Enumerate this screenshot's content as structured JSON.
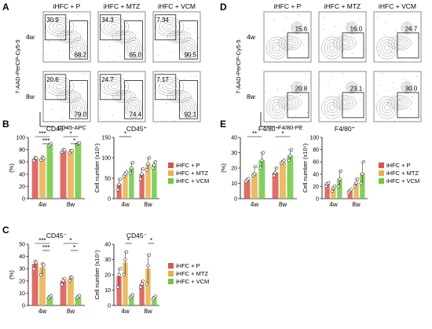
{
  "panels": {
    "A": {
      "letter": "A",
      "conditions": [
        "iHFC + P",
        "iHFC + MTZ",
        "iHFC + VCM"
      ],
      "rows": [
        "4w",
        "8w"
      ],
      "y_axis": "7-AAD-PerCP-Cy5-5",
      "x_axis": "CD45-APC",
      "gate_values": [
        [
          {
            "top": "30.9",
            "bottom": "68.2"
          },
          {
            "top": "34.3",
            "bottom": "65.0"
          },
          {
            "top": "7.34",
            "bottom": "90.5"
          }
        ],
        [
          {
            "top": "20.6",
            "bottom": "79.0"
          },
          {
            "top": "24.7",
            "bottom": "74.4"
          },
          {
            "top": "7.17",
            "bottom": "92.1"
          }
        ]
      ]
    },
    "D": {
      "letter": "D",
      "conditions": [
        "iHFC + P",
        "iHFC + MTZ",
        "iHFC + VCM"
      ],
      "rows": [
        "4w",
        "8w"
      ],
      "y_axis": "7-AAD-PerCP-Cy5-5",
      "x_axis": "F4/80-PE",
      "gate_values": [
        [
          "15.6",
          "16.0",
          "24.7"
        ],
        [
          "20.8",
          "23.1",
          "30.0"
        ]
      ]
    },
    "B": {
      "letter": "B"
    },
    "C": {
      "letter": "C"
    },
    "E": {
      "letter": "E"
    }
  },
  "legend": {
    "labels": [
      "iHFC + P",
      "iHFC + MTZ",
      "iHFC + VCM"
    ],
    "colors": [
      "#d9534f",
      "#e8b04a",
      "#6ec842"
    ]
  },
  "chart_data": [
    {
      "id": "B-percent",
      "type": "bar",
      "title": "CD45⁺",
      "ylabel": "(%)",
      "categories": [
        "4w",
        "8w"
      ],
      "ylim": [
        0,
        100
      ],
      "yticks": [
        0,
        20,
        40,
        60,
        80,
        100
      ],
      "series": [
        {
          "name": "iHFC + P",
          "values": [
            65,
            78
          ],
          "points": [
            [
              62,
              67,
              66
            ],
            [
              76,
              80,
              79
            ]
          ]
        },
        {
          "name": "iHFC + MTZ",
          "values": [
            66,
            77
          ],
          "points": [
            [
              63,
              68,
              66
            ],
            [
              75,
              78,
              78
            ]
          ]
        },
        {
          "name": "iHFC + VCM",
          "values": [
            88,
            90
          ],
          "points": [
            [
              86,
              88,
              90
            ],
            [
              89,
              90,
              91
            ]
          ]
        }
      ],
      "significance": [
        {
          "label": "***",
          "from": [
            "4w",
            0
          ],
          "to": [
            "4w",
            2
          ]
        },
        {
          "label": "***",
          "from": [
            "4w",
            1
          ],
          "to": [
            "4w",
            2
          ]
        },
        {
          "label": "*",
          "from": [
            "8w",
            0
          ],
          "to": [
            "8w",
            2
          ]
        },
        {
          "label": "*",
          "from": [
            "8w",
            1
          ],
          "to": [
            "8w",
            2
          ]
        }
      ]
    },
    {
      "id": "B-count",
      "type": "bar",
      "title": "CD45⁺",
      "ylabel": "Cell number (x10⁵)",
      "categories": [
        "4w",
        "8w"
      ],
      "ylim": [
        0,
        150
      ],
      "yticks": [
        0,
        50,
        100,
        150
      ],
      "series": [
        {
          "name": "iHFC + P",
          "values": [
            35,
            60
          ],
          "points": [
            [
              22,
              35,
              48
            ],
            [
              48,
              60,
              73
            ]
          ]
        },
        {
          "name": "iHFC + MTZ",
          "values": [
            60,
            85
          ],
          "points": [
            [
              55,
              60,
              65
            ],
            [
              70,
              85,
              100
            ]
          ]
        },
        {
          "name": "iHFC + VCM",
          "values": [
            75,
            85
          ],
          "points": [
            [
              62,
              75,
              88
            ],
            [
              75,
              82,
              90
            ]
          ]
        }
      ],
      "significance": [
        {
          "label": "*",
          "from": [
            "4w",
            0
          ],
          "to": [
            "4w",
            2
          ]
        }
      ]
    },
    {
      "id": "C-percent",
      "type": "bar",
      "title": "CD45⁻",
      "ylabel": "(%)",
      "categories": [
        "4w",
        "8w"
      ],
      "ylim": [
        0,
        50
      ],
      "yticks": [
        0,
        10,
        20,
        30,
        40,
        50
      ],
      "series": [
        {
          "name": "iHFC + P",
          "values": [
            34,
            20
          ],
          "points": [
            [
              30,
              36,
              35
            ],
            [
              17,
              20,
              22
            ]
          ]
        },
        {
          "name": "iHFC + MTZ",
          "values": [
            31,
            22
          ],
          "points": [
            [
              25,
              34,
              33
            ],
            [
              20,
              23,
              23
            ]
          ]
        },
        {
          "name": "iHFC + VCM",
          "values": [
            7,
            7
          ],
          "points": [
            [
              6,
              7,
              8
            ],
            [
              6,
              7,
              8
            ]
          ]
        }
      ],
      "significance": [
        {
          "label": "***",
          "from": [
            "4w",
            0
          ],
          "to": [
            "4w",
            2
          ]
        },
        {
          "label": "***",
          "from": [
            "4w",
            1
          ],
          "to": [
            "4w",
            2
          ]
        },
        {
          "label": "*",
          "from": [
            "8w",
            0
          ],
          "to": [
            "8w",
            2
          ]
        },
        {
          "label": "*",
          "from": [
            "8w",
            1
          ],
          "to": [
            "8w",
            2
          ]
        }
      ]
    },
    {
      "id": "C-count",
      "type": "bar",
      "title": "CD45⁻",
      "ylabel": "Cell number (x10⁵)",
      "categories": [
        "4w",
        "8w"
      ],
      "ylim": [
        0,
        40
      ],
      "yticks": [
        0,
        10,
        20,
        30,
        40
      ],
      "series": [
        {
          "name": "iHFC + P",
          "values": [
            19,
            14
          ],
          "points": [
            [
              12,
              20,
              24
            ],
            [
              12,
              14,
              16
            ]
          ]
        },
        {
          "name": "iHFC + MTZ",
          "values": [
            28,
            24
          ],
          "points": [
            [
              20,
              30,
              35
            ],
            [
              14,
              26,
              33
            ]
          ]
        },
        {
          "name": "iHFC + VCM",
          "values": [
            6,
            5
          ],
          "points": [
            [
              5,
              6,
              7
            ],
            [
              4,
              5,
              6
            ]
          ]
        }
      ],
      "significance": [
        {
          "label": "*",
          "from": [
            "4w",
            1
          ],
          "to": [
            "4w",
            2
          ]
        },
        {
          "label": "*",
          "from": [
            "8w",
            1
          ],
          "to": [
            "8w",
            2
          ]
        }
      ]
    },
    {
      "id": "E-percent",
      "type": "bar",
      "title": "F4/80⁺",
      "ylabel": "(%)",
      "categories": [
        "4w",
        "8w"
      ],
      "ylim": [
        0,
        40
      ],
      "yticks": [
        0,
        10,
        20,
        30,
        40
      ],
      "series": [
        {
          "name": "iHFC + P",
          "values": [
            12,
            17
          ],
          "points": [
            [
              11,
              12,
              13
            ],
            [
              15,
              17,
              20
            ]
          ]
        },
        {
          "name": "iHFC + MTZ",
          "values": [
            17,
            24
          ],
          "points": [
            [
              15,
              16,
              21
            ],
            [
              23,
              24,
              25
            ]
          ]
        },
        {
          "name": "iHFC + VCM",
          "values": [
            25,
            28
          ],
          "points": [
            [
              20,
              25,
              30
            ],
            [
              25,
              28,
              32
            ]
          ]
        }
      ],
      "significance": [
        {
          "label": "**",
          "from": [
            "4w",
            0
          ],
          "to": [
            "4w",
            2
          ]
        },
        {
          "label": "*",
          "from": [
            "8w",
            0
          ],
          "to": [
            "8w",
            2
          ]
        }
      ]
    },
    {
      "id": "E-count",
      "type": "bar",
      "title": "F4/80⁺",
      "ylabel": "Cell number (x10⁵)",
      "categories": [
        "4w",
        "8w"
      ],
      "ylim": [
        0,
        100
      ],
      "yticks": [
        0,
        20,
        40,
        60,
        80,
        100
      ],
      "series": [
        {
          "name": "iHFC + P",
          "values": [
            24,
            13
          ],
          "points": [
            [
              20,
              24,
              26
            ],
            [
              10,
              13,
              15
            ]
          ]
        },
        {
          "name": "iHFC + MTZ",
          "values": [
            17,
            26
          ],
          "points": [
            [
              12,
              17,
              20
            ],
            [
              20,
              26,
              32
            ]
          ]
        },
        {
          "name": "iHFC + VCM",
          "values": [
            32,
            42
          ],
          "points": [
            [
              20,
              32,
              45
            ],
            [
              25,
              40,
              60
            ]
          ]
        }
      ],
      "significance": []
    }
  ]
}
